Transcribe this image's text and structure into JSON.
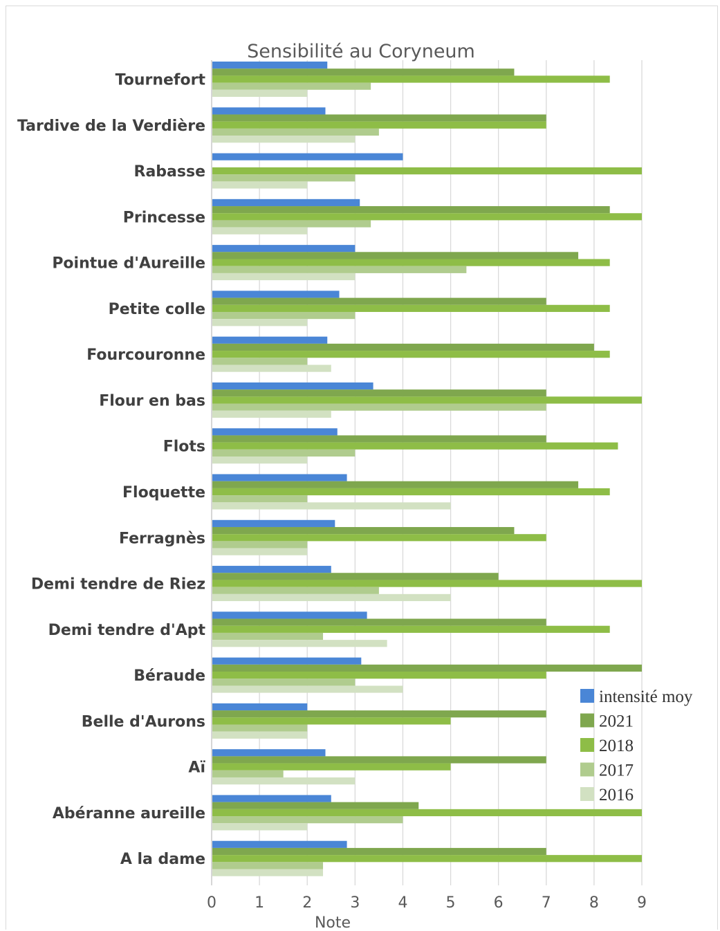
{
  "chart_data": {
    "type": "bar",
    "orientation": "horizontal",
    "title": "Sensibilité au Coryneum",
    "xlabel": "Note",
    "ylabel": "",
    "xlim": [
      0,
      9
    ],
    "xticks": [
      "0",
      "1",
      "2",
      "3",
      "4",
      "5",
      "6",
      "7",
      "8",
      "9"
    ],
    "grid": true,
    "legend_position": "bottom-right",
    "categories": [
      "Tournefort",
      "Tardive de la Verdière",
      "Rabasse",
      "Princesse",
      "Pointue d'Aureille",
      "Petite colle",
      "Fourcouronne",
      "Flour en bas",
      "Flots",
      "Floquette",
      "Ferragnès",
      "Demi tendre de Riez",
      "Demi tendre d'Apt",
      "Béraude",
      "Belle d'Aurons",
      "Aï",
      "Abéranne aureille",
      "A la dame"
    ],
    "series": [
      {
        "name": "intensité moy",
        "color": "#4a86d6",
        "values": [
          2.42,
          2.38,
          4.0,
          3.1,
          3.0,
          2.67,
          2.42,
          3.38,
          2.63,
          2.83,
          2.58,
          2.5,
          3.25,
          3.13,
          2.0,
          2.38,
          2.5,
          2.83
        ]
      },
      {
        "name": "2021",
        "color": "#7fa74e",
        "values": [
          6.33,
          7.0,
          0,
          8.33,
          7.67,
          7.0,
          8.0,
          7.0,
          7.0,
          7.67,
          6.33,
          6.0,
          7.0,
          9.0,
          7.0,
          7.0,
          4.33,
          7.0
        ]
      },
      {
        "name": "2018",
        "color": "#8ebd47",
        "values": [
          8.33,
          7.0,
          9.0,
          9.0,
          8.33,
          8.33,
          8.33,
          9.0,
          8.5,
          8.33,
          7.0,
          9.0,
          8.33,
          7.0,
          5.0,
          5.0,
          9.0,
          9.0
        ]
      },
      {
        "name": "2017",
        "color": "#b0cc8e",
        "values": [
          3.33,
          3.5,
          3.0,
          3.33,
          5.33,
          3.0,
          2.0,
          7.0,
          3.0,
          2.0,
          2.0,
          3.5,
          2.33,
          3.0,
          2.0,
          1.5,
          4.0,
          2.33
        ]
      },
      {
        "name": "2016",
        "color": "#d2e1c2",
        "values": [
          2.0,
          3.0,
          2.0,
          2.0,
          3.0,
          2.0,
          2.5,
          2.5,
          2.0,
          5.0,
          2.0,
          5.0,
          3.67,
          4.0,
          2.0,
          3.0,
          2.0,
          2.33
        ]
      }
    ]
  }
}
